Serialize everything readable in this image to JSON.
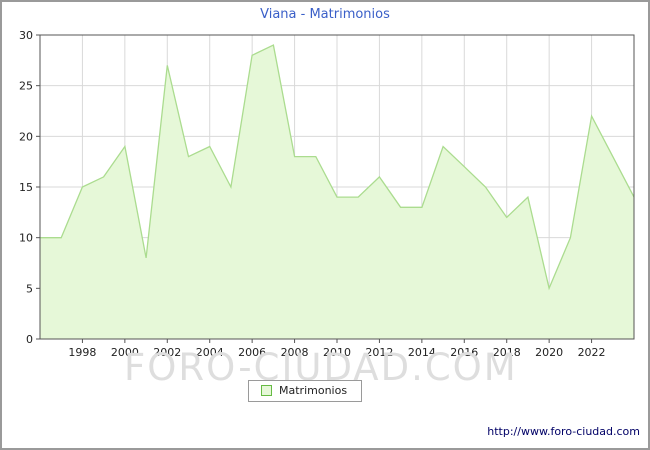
{
  "title": "Viana - Matrimonios",
  "legend": {
    "label": "Matrimonios"
  },
  "watermark": "FORO-CIUDAD.COM",
  "footer_url": "http://www.foro-ciudad.com",
  "colors": {
    "title": "#3A5FC8",
    "area_fill": "#E6F8D8",
    "area_line": "#ABDC8F",
    "legend_swatch_border": "#66BB44",
    "grid": "#D9D9D9",
    "axis": "#555555",
    "text": "#222222",
    "url": "#000066",
    "watermark": "#DEDEDE",
    "frame_border": "#9A9A9A"
  },
  "chart_data": {
    "type": "area",
    "title": "Viana - Matrimonios",
    "series_name": "Matrimonios",
    "x": [
      1996,
      1997,
      1998,
      1999,
      2000,
      2001,
      2002,
      2003,
      2004,
      2005,
      2006,
      2007,
      2008,
      2009,
      2010,
      2011,
      2012,
      2013,
      2014,
      2015,
      2016,
      2017,
      2018,
      2019,
      2020,
      2021,
      2022,
      2023,
      2024
    ],
    "values": [
      10,
      10,
      15,
      16,
      19,
      8,
      27,
      18,
      19,
      15,
      28,
      29,
      18,
      18,
      14,
      14,
      16,
      13,
      13,
      19,
      17,
      15,
      12,
      14,
      5,
      10,
      22,
      18,
      14
    ],
    "xlabel": "",
    "ylabel": "",
    "ylim": [
      0,
      30
    ],
    "yticks": [
      0,
      5,
      10,
      15,
      20,
      25,
      30
    ],
    "xticks": [
      1998,
      2000,
      2002,
      2004,
      2006,
      2008,
      2010,
      2012,
      2014,
      2016,
      2018,
      2020,
      2022
    ],
    "grid": true,
    "legend_position": "bottom-center"
  }
}
